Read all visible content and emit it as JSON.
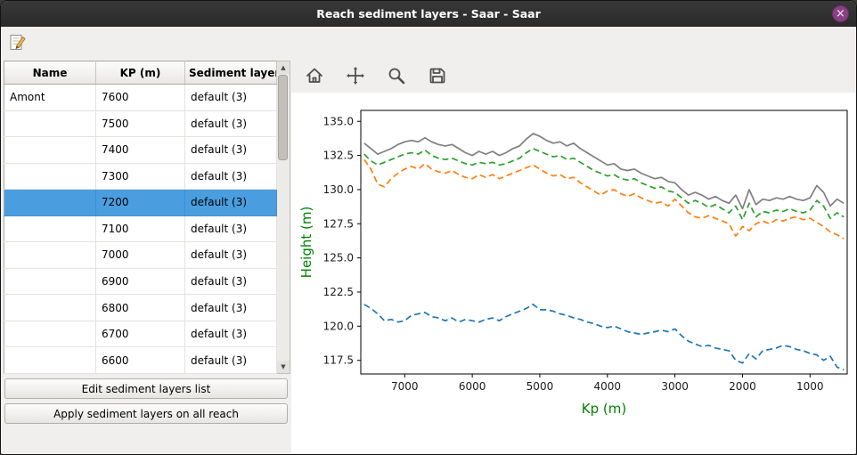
{
  "window": {
    "title": "Reach sediment layers - Saar - Saar"
  },
  "colors": {
    "titlebar": "#2e2e2e",
    "close_button": "#8a4184",
    "selection_blue": "#4a9ee0",
    "axis_label_green": "#008000",
    "panel_gray": "#f1efee"
  },
  "app_toolbar": {
    "icons": [
      {
        "name": "edit-icon"
      }
    ]
  },
  "table": {
    "columns": [
      "Name",
      "KP (m)",
      "Sediment layers"
    ],
    "rows": [
      {
        "name": "Amont",
        "kp": "7600",
        "layers": "default (3)",
        "selected": false
      },
      {
        "name": "",
        "kp": "7500",
        "layers": "default (3)",
        "selected": false
      },
      {
        "name": "",
        "kp": "7400",
        "layers": "default (3)",
        "selected": false
      },
      {
        "name": "",
        "kp": "7300",
        "layers": "default (3)",
        "selected": false
      },
      {
        "name": "",
        "kp": "7200",
        "layers": "default (3)",
        "selected": true
      },
      {
        "name": "",
        "kp": "7100",
        "layers": "default (3)",
        "selected": false
      },
      {
        "name": "",
        "kp": "7000",
        "layers": "default (3)",
        "selected": false
      },
      {
        "name": "",
        "kp": "6900",
        "layers": "default (3)",
        "selected": false
      },
      {
        "name": "",
        "kp": "6800",
        "layers": "default (3)",
        "selected": false
      },
      {
        "name": "",
        "kp": "6700",
        "layers": "default (3)",
        "selected": false
      },
      {
        "name": "",
        "kp": "6600",
        "layers": "default (3)",
        "selected": false
      }
    ]
  },
  "buttons": {
    "edit_list": "Edit sediment layers list",
    "apply_all": "Apply sediment layers on all reach"
  },
  "plot_toolbar": {
    "icons": [
      {
        "name": "home-icon"
      },
      {
        "name": "pan-icon"
      },
      {
        "name": "zoom-icon"
      },
      {
        "name": "save-icon"
      }
    ]
  },
  "chart_data": {
    "type": "line",
    "title": "",
    "xlabel": "Kp (m)",
    "ylabel": "Height (m)",
    "x_reversed": true,
    "xlim": [
      7650,
      450
    ],
    "ylim": [
      116.5,
      135.8
    ],
    "xticks": [
      7000,
      6000,
      5000,
      4000,
      3000,
      2000,
      1000
    ],
    "yticks": [
      117.5,
      120.0,
      122.5,
      125.0,
      127.5,
      130.0,
      132.5,
      135.0
    ],
    "grid": false,
    "legend": "none",
    "x": [
      7600,
      7500,
      7400,
      7300,
      7200,
      7100,
      7000,
      6900,
      6800,
      6700,
      6600,
      6500,
      6400,
      6300,
      6200,
      6100,
      6000,
      5900,
      5800,
      5700,
      5600,
      5500,
      5400,
      5300,
      5200,
      5100,
      5000,
      4900,
      4800,
      4700,
      4600,
      4500,
      4400,
      4300,
      4200,
      4100,
      4000,
      3900,
      3800,
      3700,
      3600,
      3500,
      3400,
      3300,
      3200,
      3100,
      3000,
      2900,
      2800,
      2700,
      2600,
      2500,
      2400,
      2300,
      2200,
      2100,
      2000,
      1900,
      1800,
      1700,
      1600,
      1500,
      1400,
      1300,
      1200,
      1100,
      1000,
      900,
      800,
      700,
      600,
      500
    ],
    "series": [
      {
        "name": "top-gray",
        "style": "solid",
        "color": "#7f7f7f",
        "values": [
          133.4,
          133.0,
          132.6,
          132.8,
          133.0,
          133.3,
          133.5,
          133.6,
          133.5,
          133.8,
          133.5,
          133.3,
          133.2,
          133.3,
          133.0,
          132.7,
          132.5,
          132.8,
          132.6,
          132.8,
          132.5,
          132.7,
          133.0,
          133.2,
          133.7,
          134.1,
          133.9,
          133.6,
          133.4,
          133.5,
          133.2,
          133.4,
          133.0,
          132.7,
          132.4,
          132.1,
          131.8,
          131.9,
          131.5,
          131.4,
          131.5,
          131.2,
          131.0,
          130.8,
          130.9,
          130.6,
          130.5,
          130.0,
          129.6,
          129.8,
          129.6,
          129.3,
          129.5,
          129.2,
          129.0,
          129.6,
          128.6,
          130.0,
          128.9,
          129.3,
          129.2,
          129.4,
          129.3,
          129.5,
          129.3,
          129.2,
          129.4,
          130.3,
          129.8,
          128.8,
          129.3,
          129.0
        ]
      },
      {
        "name": "green-dashed",
        "style": "dashed",
        "color": "#2ca02c",
        "values": [
          132.6,
          132.1,
          131.8,
          132.0,
          132.2,
          132.4,
          132.6,
          132.7,
          132.6,
          132.9,
          132.5,
          132.3,
          132.2,
          132.3,
          132.1,
          131.9,
          131.8,
          132.0,
          131.9,
          132.0,
          131.8,
          131.9,
          132.1,
          132.3,
          132.7,
          133.0,
          132.8,
          132.6,
          132.4,
          132.5,
          132.2,
          132.3,
          132.0,
          131.7,
          131.4,
          131.2,
          131.0,
          131.1,
          130.8,
          130.7,
          130.8,
          130.5,
          130.3,
          130.1,
          130.2,
          129.9,
          129.8,
          129.4,
          129.0,
          129.2,
          129.0,
          128.7,
          128.9,
          128.6,
          128.3,
          128.8,
          127.8,
          129.0,
          128.0,
          128.4,
          128.3,
          128.5,
          128.4,
          128.6,
          128.4,
          128.3,
          128.5,
          129.2,
          128.8,
          127.9,
          128.3,
          128.0
        ]
      },
      {
        "name": "orange-dashed",
        "style": "dashed",
        "color": "#ff7f0e",
        "values": [
          132.2,
          131.5,
          130.4,
          130.2,
          130.8,
          131.2,
          131.5,
          131.7,
          131.5,
          131.9,
          131.5,
          131.3,
          131.2,
          131.4,
          131.1,
          130.9,
          130.8,
          131.1,
          130.9,
          131.1,
          130.8,
          131.0,
          131.2,
          131.4,
          131.6,
          131.8,
          131.5,
          131.2,
          131.0,
          131.1,
          130.8,
          130.9,
          130.5,
          130.2,
          129.9,
          129.6,
          129.9,
          130.0,
          129.7,
          129.5,
          129.7,
          129.4,
          129.2,
          129.0,
          129.1,
          128.8,
          129.3,
          128.8,
          128.3,
          128.0,
          127.9,
          128.1,
          127.9,
          127.7,
          127.5,
          126.6,
          127.3,
          127.0,
          127.5,
          127.7,
          127.5,
          127.8,
          127.7,
          127.9,
          128.0,
          127.8,
          127.9,
          127.6,
          127.3,
          126.9,
          126.7,
          126.4
        ]
      },
      {
        "name": "blue-dashed",
        "style": "dashed",
        "color": "#1f77b4",
        "values": [
          121.6,
          121.3,
          120.9,
          120.4,
          120.5,
          120.3,
          120.4,
          120.8,
          120.9,
          121.0,
          120.7,
          120.6,
          120.4,
          120.6,
          120.3,
          120.5,
          120.4,
          120.3,
          120.5,
          120.6,
          120.4,
          120.7,
          120.9,
          121.1,
          121.3,
          121.6,
          121.2,
          121.2,
          121.1,
          120.9,
          120.8,
          120.6,
          120.5,
          120.3,
          120.2,
          120.0,
          119.9,
          120.0,
          119.8,
          119.6,
          119.5,
          119.4,
          119.5,
          119.6,
          119.7,
          119.6,
          119.8,
          119.3,
          118.9,
          118.7,
          118.5,
          118.6,
          118.4,
          118.3,
          118.2,
          117.5,
          117.3,
          118.0,
          117.6,
          118.2,
          118.3,
          118.4,
          118.6,
          118.5,
          118.3,
          118.2,
          118.0,
          117.9,
          117.5,
          117.8,
          117.0,
          116.8
        ]
      }
    ]
  }
}
